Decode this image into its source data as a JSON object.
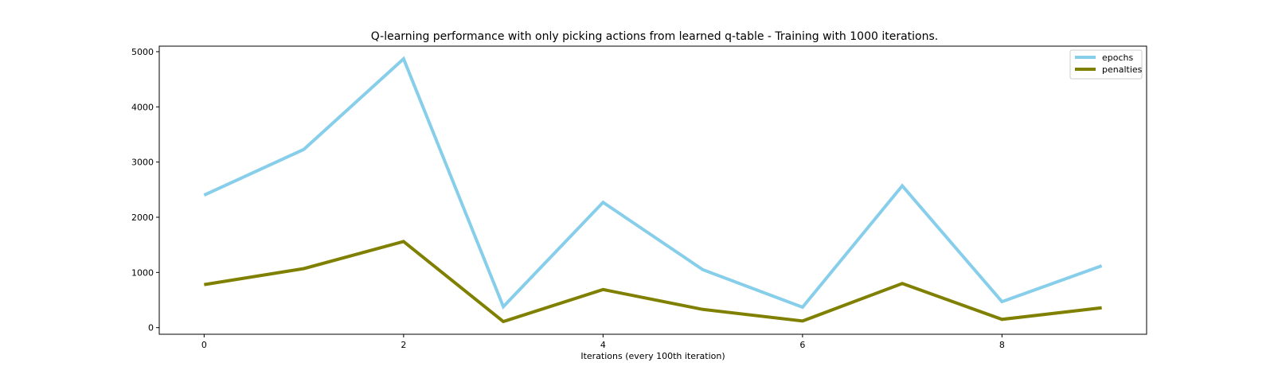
{
  "chart_data": {
    "type": "line",
    "title": "Q-learning performance with only picking actions from learned q-table - Training with 1000 iterations.",
    "xlabel": "Iterations (every 100th iteration)",
    "ylabel": "",
    "x": [
      0,
      1,
      2,
      3,
      4,
      5,
      6,
      7,
      8,
      9
    ],
    "xlim": [
      -0.45,
      9.45
    ],
    "ylim": [
      -120,
      5100
    ],
    "x_ticks": [
      0,
      2,
      4,
      6,
      8
    ],
    "x_tick_labels": [
      "0",
      "2",
      "4",
      "6",
      "8"
    ],
    "y_ticks": [
      0,
      1000,
      2000,
      3000,
      4000,
      5000
    ],
    "y_tick_labels": [
      "0",
      "1000",
      "2000",
      "3000",
      "4000",
      "5000"
    ],
    "grid": false,
    "legend_position": "top-right",
    "series": [
      {
        "name": "epochs",
        "color": "#87ceeb",
        "values": [
          2400,
          3230,
          4870,
          380,
          2270,
          1050,
          370,
          2570,
          470,
          1120
        ]
      },
      {
        "name": "penalties",
        "color": "#808000",
        "values": [
          780,
          1070,
          1560,
          110,
          690,
          330,
          120,
          800,
          150,
          360
        ]
      }
    ]
  }
}
